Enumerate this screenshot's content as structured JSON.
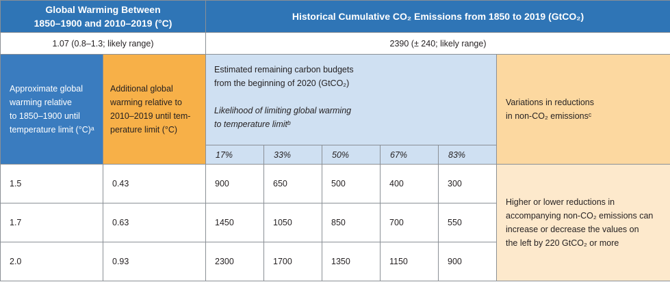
{
  "header": {
    "warming_title_line1": "Global Warming Between",
    "warming_title_line2": "1850–1900 and 2010–2019 (°C)",
    "emissions_title": "Historical Cumulative CO₂ Emissions from 1850 to 2019 (GtCO₂)"
  },
  "likely": {
    "warming_value": "1.07 (0.8–1.3; likely range)",
    "emissions_value": "2390 (± 240; likely range)"
  },
  "columns": {
    "approx_lines": [
      "Approximate global",
      "warming relative",
      "to 1850–1900 until",
      "temperature limit (°C)ᵃ"
    ],
    "additional_lines": [
      "Additional global",
      "warming relative to",
      "2010–2019 until tem-",
      "perature limit (°C)"
    ],
    "budget_lines": [
      "Estimated remaining carbon budgets",
      "from the beginning of 2020 (GtCO₂)"
    ],
    "likelihood_lines": [
      "Likelihood of limiting global warming",
      "to temperature limitᵇ"
    ],
    "variations_lines": [
      "Variations in reductions",
      "in non-CO₂ emissionsᶜ"
    ]
  },
  "likelihoods": [
    "17%",
    "33%",
    "50%",
    "67%",
    "83%"
  ],
  "rows": [
    {
      "approx": "1.5",
      "additional": "0.43",
      "budgets": [
        "900",
        "650",
        "500",
        "400",
        "300"
      ]
    },
    {
      "approx": "1.7",
      "additional": "0.63",
      "budgets": [
        "1450",
        "1050",
        "850",
        "700",
        "550"
      ]
    },
    {
      "approx": "2.0",
      "additional": "0.93",
      "budgets": [
        "2300",
        "1700",
        "1350",
        "1150",
        "900"
      ]
    }
  ],
  "variations_note_lines": [
    "Higher or lower reductions in",
    "accompanying non-CO₂ emissions can",
    "increase or decrease the values on",
    "the left by 220 GtCO₂ or more"
  ],
  "colors": {
    "header_blue": "#2f75b6",
    "column_blue": "#3a7cbf",
    "orange": "#f7b048",
    "light_blue": "#cfe0f2",
    "peach": "#fcd8a0",
    "light_peach": "#fde9cc"
  }
}
